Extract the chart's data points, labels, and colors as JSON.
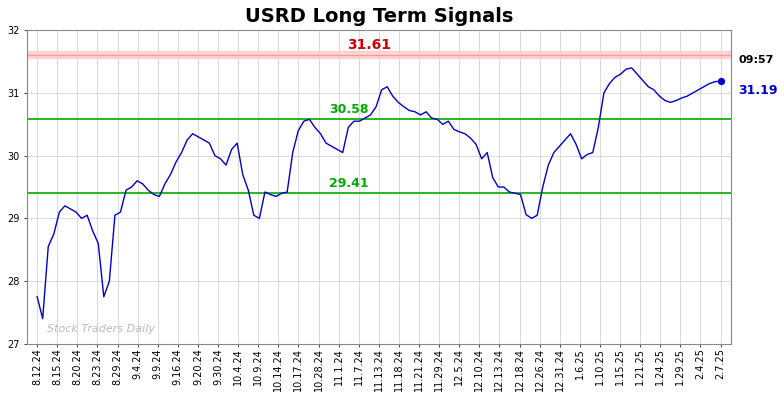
{
  "title": "USRD Long Term Signals",
  "red_line": 31.61,
  "green_line_upper": 30.58,
  "green_line_lower": 29.41,
  "last_price": 31.19,
  "last_time": "09:57",
  "annotation_red": "31.61",
  "annotation_green_upper": "30.58",
  "annotation_green_lower": "29.41",
  "watermark": "Stock Traders Daily",
  "ylim": [
    27.0,
    32.0
  ],
  "x_labels": [
    "8.12.24",
    "8.15.24",
    "8.20.24",
    "8.23.24",
    "8.29.24",
    "9.4.24",
    "9.9.24",
    "9.16.24",
    "9.20.24",
    "9.30.24",
    "10.4.24",
    "10.9.24",
    "10.14.24",
    "10.17.24",
    "10.28.24",
    "11.1.24",
    "11.7.24",
    "11.13.24",
    "11.18.24",
    "11.21.24",
    "11.29.24",
    "12.5.24",
    "12.10.24",
    "12.13.24",
    "12.18.24",
    "12.26.24",
    "12.31.24",
    "1.6.25",
    "1.10.25",
    "1.15.25",
    "1.21.25",
    "1.24.25",
    "1.29.25",
    "2.4.25",
    "2.7.25"
  ],
  "y_values": [
    27.75,
    27.4,
    28.55,
    28.75,
    29.1,
    29.2,
    29.15,
    29.1,
    29.0,
    29.05,
    28.8,
    28.6,
    27.75,
    28.0,
    29.05,
    29.1,
    29.45,
    29.5,
    29.6,
    29.55,
    29.45,
    29.38,
    29.35,
    29.55,
    29.7,
    29.9,
    30.05,
    30.25,
    30.35,
    30.3,
    30.25,
    30.2,
    30.0,
    29.95,
    29.85,
    30.1,
    30.2,
    29.7,
    29.45,
    29.05,
    29.0,
    29.42,
    29.38,
    29.35,
    29.4,
    29.42,
    30.05,
    30.4,
    30.55,
    30.58,
    30.45,
    30.35,
    30.2,
    30.15,
    30.1,
    30.05,
    30.45,
    30.55,
    30.55,
    30.6,
    30.65,
    30.78,
    31.05,
    31.1,
    30.95,
    30.85,
    30.78,
    30.72,
    30.7,
    30.65,
    30.7,
    30.6,
    30.58,
    30.5,
    30.55,
    30.42,
    30.38,
    30.35,
    30.28,
    30.18,
    29.95,
    30.05,
    29.65,
    29.5,
    29.5,
    29.42,
    29.4,
    29.38,
    29.06,
    29.0,
    29.05,
    29.5,
    29.85,
    30.05,
    30.15,
    30.25,
    30.35,
    30.18,
    29.95,
    30.02,
    30.05,
    30.45,
    31.0,
    31.15,
    31.25,
    31.3,
    31.38,
    31.4,
    31.3,
    31.2,
    31.1,
    31.05,
    30.95,
    30.88,
    30.85,
    30.88,
    30.92,
    30.95,
    31.0,
    31.05,
    31.1,
    31.15,
    31.18,
    31.19
  ],
  "line_color": "#0000cc",
  "red_hline_color": "#ffcccc",
  "red_text_color": "#cc0000",
  "green_line_color": "#00aa00",
  "bg_color": "#ffffff",
  "grid_color": "#cccccc",
  "title_fontsize": 14,
  "label_fontsize": 7
}
